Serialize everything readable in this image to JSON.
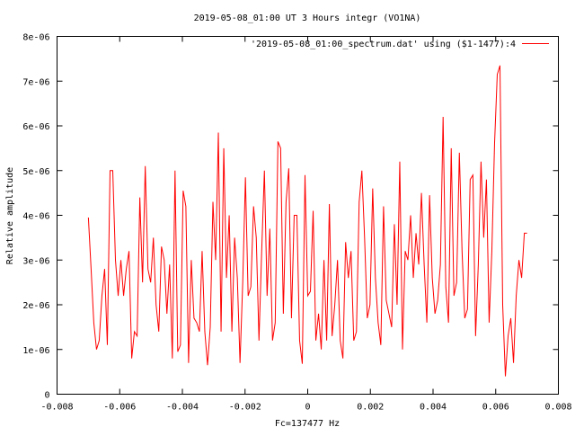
{
  "colors": {
    "background": "#ffffff",
    "axis": "#000000",
    "series": "#ff0000"
  },
  "chart_data": {
    "type": "line",
    "title": "2019-05-08_01:00 UT 3 Hours integr (VO1NA)",
    "xlabel": "Fc=137477 Hz",
    "ylabel": "Relative amplitude",
    "xlim": [
      -0.008,
      0.008
    ],
    "ylim": [
      0,
      8e-06
    ],
    "grid": false,
    "legend_position": "top-right",
    "x_ticks": [
      {
        "value": -0.008,
        "label": "-0.008"
      },
      {
        "value": -0.006,
        "label": "-0.006"
      },
      {
        "value": -0.004,
        "label": "-0.004"
      },
      {
        "value": -0.002,
        "label": "-0.002"
      },
      {
        "value": 0,
        "label": "0"
      },
      {
        "value": 0.002,
        "label": "0.002"
      },
      {
        "value": 0.004,
        "label": "0.004"
      },
      {
        "value": 0.006,
        "label": "0.006"
      },
      {
        "value": 0.008,
        "label": "0.008"
      }
    ],
    "y_ticks": [
      {
        "value": 0,
        "label": "0"
      },
      {
        "value": 1e-06,
        "label": "1e-06"
      },
      {
        "value": 2e-06,
        "label": "2e-06"
      },
      {
        "value": 3e-06,
        "label": "3e-06"
      },
      {
        "value": 4e-06,
        "label": "4e-06"
      },
      {
        "value": 5e-06,
        "label": "5e-06"
      },
      {
        "value": 6e-06,
        "label": "6e-06"
      },
      {
        "value": 7e-06,
        "label": "7e-06"
      },
      {
        "value": 8e-06,
        "label": "8e-06"
      }
    ],
    "series": [
      {
        "name": "'2019-05-08_01:00_spectrum.dat' using ($1-1477):4",
        "x_start": -0.007,
        "x_end": 0.007,
        "values": [
          3.95e-06,
          2.8e-06,
          1.6e-06,
          1e-06,
          1.2e-06,
          2.2e-06,
          2.8e-06,
          1.1e-06,
          5e-06,
          5e-06,
          3e-06,
          2.2e-06,
          3e-06,
          2.2e-06,
          2.8e-06,
          3.2e-06,
          8e-07,
          1.4e-06,
          1.3e-06,
          4.4e-06,
          2.5e-06,
          5.1e-06,
          2.8e-06,
          2.5e-06,
          3.5e-06,
          2e-06,
          1.4e-06,
          3.3e-06,
          3e-06,
          1.8e-06,
          2.9e-06,
          8e-07,
          5e-06,
          9.5e-07,
          1.1e-06,
          4.55e-06,
          4.2e-06,
          7e-07,
          3e-06,
          1.7e-06,
          1.6e-06,
          1.4e-06,
          3.2e-06,
          1.4e-06,
          6.5e-07,
          1.5e-06,
          4.3e-06,
          3e-06,
          5.85e-06,
          1.4e-06,
          5.5e-06,
          2.6e-06,
          4e-06,
          1.4e-06,
          3.5e-06,
          2.6e-06,
          7e-07,
          2.5e-06,
          4.85e-06,
          2.2e-06,
          2.4e-06,
          4.2e-06,
          3.5e-06,
          1.2e-06,
          3.2e-06,
          5e-06,
          2.2e-06,
          3.7e-06,
          1.2e-06,
          1.6e-06,
          5.65e-06,
          5.5e-06,
          1.8e-06,
          4.3e-06,
          5.05e-06,
          1.7e-06,
          4e-06,
          4e-06,
          1.2e-06,
          6.8e-07,
          4.9e-06,
          2.2e-06,
          2.3e-06,
          4.1e-06,
          1.2e-06,
          1.8e-06,
          1e-06,
          3e-06,
          1.2e-06,
          4.25e-06,
          1.3e-06,
          2e-06,
          3e-06,
          1.2e-06,
          8e-07,
          3.4e-06,
          2.6e-06,
          3.2e-06,
          1.2e-06,
          1.4e-06,
          4.3e-06,
          5e-06,
          3.5e-06,
          1.7e-06,
          2e-06,
          4.6e-06,
          2.6e-06,
          1.6e-06,
          1.1e-06,
          4.2e-06,
          2.1e-06,
          1.8e-06,
          1.5e-06,
          3.8e-06,
          2e-06,
          5.2e-06,
          1e-06,
          3.2e-06,
          3e-06,
          4e-06,
          2.6e-06,
          3.6e-06,
          2.9e-06,
          4.5e-06,
          2.9e-06,
          1.6e-06,
          4.45e-06,
          2.6e-06,
          1.8e-06,
          2.1e-06,
          2.9e-06,
          6.2e-06,
          2.4e-06,
          1.6e-06,
          5.5e-06,
          2.2e-06,
          2.5e-06,
          5.4e-06,
          3.2e-06,
          1.7e-06,
          1.9e-06,
          4.8e-06,
          4.9e-06,
          1.3e-06,
          2.9e-06,
          5.2e-06,
          3.5e-06,
          4.8e-06,
          1.6e-06,
          3.2e-06,
          5.6e-06,
          7.15e-06,
          7.35e-06,
          2e-06,
          4e-07,
          1.3e-06,
          1.7e-06,
          7e-07,
          2.2e-06,
          3e-06,
          2.6e-06,
          3.6e-06,
          3.6e-06
        ]
      }
    ]
  }
}
